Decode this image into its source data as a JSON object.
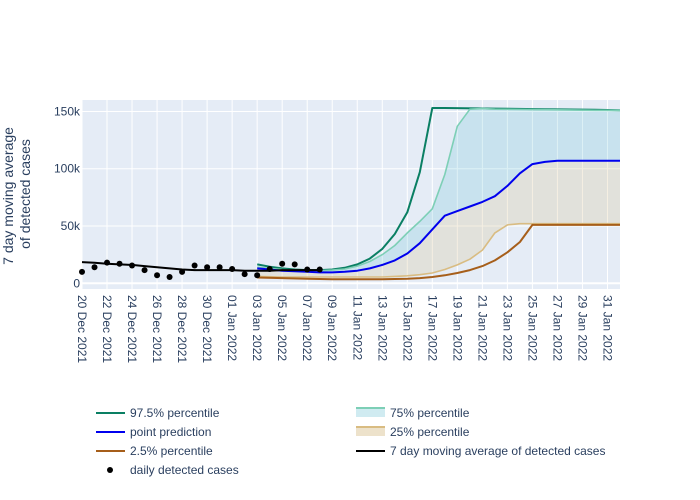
{
  "chart_data": {
    "type": "line",
    "ylabel_lines": [
      "7 day moving average",
      "of detected cases"
    ],
    "xlabel": "",
    "x_start": "2021-12-20",
    "x_end": "2022-02-01",
    "ylim": [
      -5000,
      160000
    ],
    "y_ticks": [
      {
        "value": 0,
        "label": "0"
      },
      {
        "value": 50000,
        "label": "50k"
      },
      {
        "value": 100000,
        "label": "100k"
      },
      {
        "value": 150000,
        "label": "150k"
      }
    ],
    "x_ticks": [
      {
        "date": "2021-12-20",
        "label": "20 Dec 2021"
      },
      {
        "date": "2021-12-22",
        "label": "22 Dec 2021"
      },
      {
        "date": "2021-12-24",
        "label": "24 Dec 2021"
      },
      {
        "date": "2021-12-26",
        "label": "26 Dec 2021"
      },
      {
        "date": "2021-12-28",
        "label": "28 Dec 2021"
      },
      {
        "date": "2021-12-30",
        "label": "30 Dec 2021"
      },
      {
        "date": "2022-01-01",
        "label": "01 Jan 2022"
      },
      {
        "date": "2022-01-03",
        "label": "03 Jan 2022"
      },
      {
        "date": "2022-01-05",
        "label": "05 Jan 2022"
      },
      {
        "date": "2022-01-07",
        "label": "07 Jan 2022"
      },
      {
        "date": "2022-01-09",
        "label": "09 Jan 2022"
      },
      {
        "date": "2022-01-11",
        "label": "11 Jan 2022"
      },
      {
        "date": "2022-01-13",
        "label": "13 Jan 2022"
      },
      {
        "date": "2022-01-15",
        "label": "15 Jan 2022"
      },
      {
        "date": "2022-01-17",
        "label": "17 Jan 2022"
      },
      {
        "date": "2022-01-19",
        "label": "19 Jan 2022"
      },
      {
        "date": "2022-01-21",
        "label": "21 Jan 2022"
      },
      {
        "date": "2022-01-23",
        "label": "23 Jan 2022"
      },
      {
        "date": "2022-01-25",
        "label": "25 Jan 2022"
      },
      {
        "date": "2022-01-27",
        "label": "27 Jan 2022"
      },
      {
        "date": "2022-01-29",
        "label": "29 Jan 2022"
      },
      {
        "date": "2022-01-31",
        "label": "31 Jan 2022"
      }
    ],
    "series": [
      {
        "name": "97.5% percentile",
        "kind": "line",
        "color": "#0a7f63",
        "x": [
          "2022-01-03",
          "2022-01-04",
          "2022-01-05",
          "2022-01-06",
          "2022-01-07",
          "2022-01-08",
          "2022-01-09",
          "2022-01-10",
          "2022-01-11",
          "2022-01-12",
          "2022-01-13",
          "2022-01-14",
          "2022-01-15",
          "2022-01-16",
          "2022-01-17",
          "2022-01-18",
          "2022-01-22",
          "2022-01-26",
          "2022-01-30",
          "2022-02-01"
        ],
        "y": [
          16500,
          14500,
          13000,
          12000,
          11500,
          11500,
          12000,
          13500,
          16500,
          21500,
          30000,
          43000,
          62000,
          97000,
          153000,
          153000,
          152500,
          152000,
          151500,
          151000
        ]
      },
      {
        "name": "75% percentile",
        "kind": "band",
        "color": "#7dcfb6",
        "fill": "rgba(100,190,210,0.22)",
        "x": [
          "2022-01-03",
          "2022-01-04",
          "2022-01-05",
          "2022-01-06",
          "2022-01-07",
          "2022-01-08",
          "2022-01-09",
          "2022-01-10",
          "2022-01-11",
          "2022-01-12",
          "2022-01-13",
          "2022-01-14",
          "2022-01-15",
          "2022-01-16",
          "2022-01-17",
          "2022-01-18",
          "2022-01-19",
          "2022-01-20",
          "2022-01-21",
          "2022-01-22",
          "2022-01-26",
          "2022-01-30",
          "2022-02-01"
        ],
        "y": [
          14000,
          13000,
          12000,
          11500,
          11000,
          11000,
          11500,
          12500,
          15000,
          19000,
          25000,
          33000,
          44000,
          54000,
          65000,
          95000,
          137000,
          152000,
          152500,
          152000,
          151500,
          151000,
          151000
        ]
      },
      {
        "name": "point prediction",
        "kind": "line",
        "color": "#0000ee",
        "x": [
          "2022-01-03",
          "2022-01-04",
          "2022-01-05",
          "2022-01-06",
          "2022-01-07",
          "2022-01-08",
          "2022-01-09",
          "2022-01-10",
          "2022-01-11",
          "2022-01-12",
          "2022-01-13",
          "2022-01-14",
          "2022-01-15",
          "2022-01-16",
          "2022-01-17",
          "2022-01-18",
          "2022-01-19",
          "2022-01-20",
          "2022-01-21",
          "2022-01-22",
          "2022-01-23",
          "2022-01-24",
          "2022-01-25",
          "2022-01-26",
          "2022-01-27",
          "2022-01-28",
          "2022-01-30",
          "2022-02-01"
        ],
        "y": [
          13000,
          12000,
          11000,
          10500,
          10000,
          9500,
          9500,
          10000,
          11000,
          13000,
          16000,
          20000,
          26000,
          35000,
          47000,
          59000,
          63000,
          67000,
          71000,
          76000,
          85000,
          96000,
          104000,
          106000,
          107000,
          107000,
          107000,
          107000
        ]
      },
      {
        "name": "25% percentile",
        "kind": "band",
        "color": "#d9bc82",
        "fill": "rgba(215,190,140,0.25)",
        "x": [
          "2022-01-03",
          "2022-01-05",
          "2022-01-07",
          "2022-01-09",
          "2022-01-11",
          "2022-01-13",
          "2022-01-14",
          "2022-01-15",
          "2022-01-16",
          "2022-01-17",
          "2022-01-18",
          "2022-01-19",
          "2022-01-20",
          "2022-01-21",
          "2022-01-22",
          "2022-01-23",
          "2022-01-24",
          "2022-01-25",
          "2022-01-30",
          "2022-02-01"
        ],
        "y": [
          6000,
          5500,
          5500,
          5500,
          5500,
          5500,
          6000,
          6500,
          7500,
          9000,
          12000,
          16000,
          21000,
          29000,
          44000,
          51000,
          52000,
          52000,
          52000,
          52000
        ]
      },
      {
        "name": "2.5% percentile",
        "kind": "line",
        "color": "#a65e1a",
        "x": [
          "2022-01-03",
          "2022-01-05",
          "2022-01-07",
          "2022-01-09",
          "2022-01-11",
          "2022-01-13",
          "2022-01-15",
          "2022-01-16",
          "2022-01-17",
          "2022-01-18",
          "2022-01-19",
          "2022-01-20",
          "2022-01-21",
          "2022-01-22",
          "2022-01-23",
          "2022-01-24",
          "2022-01-25",
          "2022-01-30",
          "2022-02-01"
        ],
        "y": [
          5000,
          4500,
          4000,
          3500,
          3500,
          3500,
          4000,
          4500,
          5500,
          7000,
          9000,
          11500,
          15000,
          20000,
          27000,
          36000,
          51000,
          51000,
          51000
        ]
      },
      {
        "name": "7 day moving average of detected cases",
        "kind": "line",
        "color": "#000000",
        "x": [
          "2021-12-20",
          "2021-12-21",
          "2021-12-22",
          "2021-12-23",
          "2021-12-24",
          "2021-12-25",
          "2021-12-26",
          "2021-12-27",
          "2021-12-28",
          "2021-12-29",
          "2021-12-30",
          "2021-12-31",
          "2022-01-01",
          "2022-01-02",
          "2022-01-03",
          "2022-01-04",
          "2022-01-05",
          "2022-01-06",
          "2022-01-07",
          "2022-01-08"
        ],
        "y": [
          18500,
          18000,
          17000,
          16500,
          16000,
          15000,
          14000,
          13000,
          12000,
          11500,
          11500,
          11500,
          11500,
          11000,
          11000,
          11000,
          11500,
          11500,
          11500,
          11500
        ]
      },
      {
        "name": "daily detected cases",
        "kind": "markers",
        "color": "#000000",
        "x": [
          "2021-12-20",
          "2021-12-21",
          "2021-12-22",
          "2021-12-23",
          "2021-12-24",
          "2021-12-25",
          "2021-12-26",
          "2021-12-27",
          "2021-12-28",
          "2021-12-29",
          "2021-12-30",
          "2021-12-31",
          "2022-01-01",
          "2022-01-02",
          "2022-01-03",
          "2022-01-04",
          "2022-01-05",
          "2022-01-06",
          "2022-01-07",
          "2022-01-08"
        ],
        "y": [
          10000,
          14000,
          18000,
          17000,
          15500,
          11500,
          7000,
          5500,
          10000,
          15500,
          14000,
          14000,
          12500,
          8000,
          7000,
          12500,
          17000,
          16500,
          12000,
          12000
        ]
      }
    ],
    "legend": {
      "placement": "bottom",
      "entries": [
        {
          "label": "97.5% percentile",
          "symbol": "line",
          "color": "#0a7f63"
        },
        {
          "label": "75% percentile",
          "symbol": "band",
          "color": "#7dcfb6"
        },
        {
          "label": "point prediction",
          "symbol": "line",
          "color": "#0000ee"
        },
        {
          "label": "25% percentile",
          "symbol": "band",
          "color": "#d9bc82"
        },
        {
          "label": "2.5% percentile",
          "symbol": "line",
          "color": "#a65e1a"
        },
        {
          "label": "7 day moving average of detected cases",
          "symbol": "line",
          "color": "#000000"
        },
        {
          "label": "daily detected cases",
          "symbol": "marker",
          "color": "#000000"
        }
      ]
    },
    "grid": true,
    "plot_bgcolor": "#e5ecf6"
  }
}
